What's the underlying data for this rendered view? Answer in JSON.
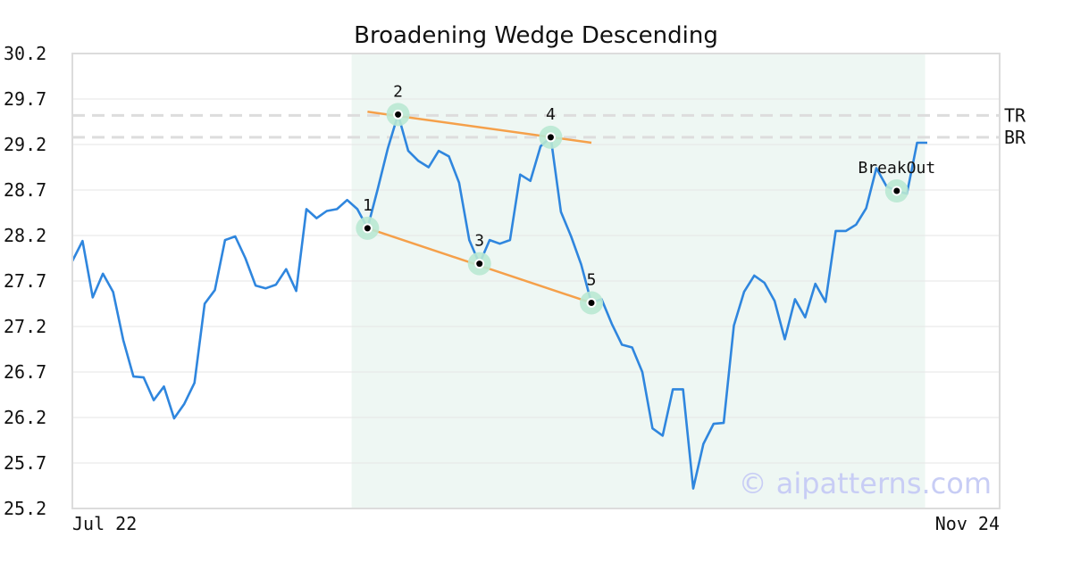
{
  "chart_data": {
    "type": "line",
    "title": "Broadening Wedge Descending",
    "xlabel": "",
    "ylabel": "",
    "ylim": [
      25.2,
      30.2
    ],
    "yticks": [
      "30.2",
      "29.7",
      "29.2",
      "28.7",
      "28.2",
      "27.7",
      "27.2",
      "26.7",
      "26.2",
      "25.7",
      "25.2"
    ],
    "xtick_labels": [
      {
        "index": 0,
        "label": "Jul 22"
      },
      {
        "index": 84,
        "label": "Nov 24"
      }
    ],
    "grid": true,
    "series": [
      {
        "values": [
          27.92,
          28.14,
          27.52,
          27.78,
          27.58,
          27.05,
          26.65,
          26.64,
          26.39,
          26.54,
          26.19,
          26.35,
          26.58,
          27.45,
          27.6,
          28.15,
          28.19,
          27.95,
          27.65,
          27.62,
          27.66,
          27.83,
          27.59,
          28.49,
          28.39,
          28.47,
          28.49,
          28.59,
          28.49,
          28.28,
          28.71,
          29.16,
          29.53,
          29.13,
          29.02,
          28.95,
          29.13,
          29.07,
          28.78,
          28.15,
          27.89,
          28.15,
          28.11,
          28.15,
          28.87,
          28.8,
          29.18,
          29.28,
          28.46,
          28.19,
          27.88,
          27.46,
          27.5,
          27.23,
          27.0,
          26.97,
          26.7,
          26.08,
          26.0,
          26.51,
          26.51,
          25.42,
          25.91,
          26.13,
          26.14,
          27.21,
          27.58,
          27.76,
          27.68,
          27.48,
          27.06,
          27.5,
          27.3,
          27.67,
          27.47,
          28.25,
          28.25,
          28.32,
          28.5,
          28.94,
          28.74,
          28.69,
          28.66,
          29.22,
          29.22
        ]
      }
    ],
    "pattern_region": {
      "start_index": 27,
      "end_index": 83
    },
    "pattern_points": [
      {
        "label": "1",
        "index": 29,
        "value": 28.28
      },
      {
        "label": "2",
        "index": 32,
        "value": 29.53
      },
      {
        "label": "3",
        "index": 40,
        "value": 27.89
      },
      {
        "label": "4",
        "index": 47,
        "value": 29.28
      },
      {
        "label": "5",
        "index": 51,
        "value": 27.46
      },
      {
        "label": "BreakOut",
        "index": 81,
        "value": 28.69
      }
    ],
    "trendlines": [
      {
        "x1": 29,
        "y1": 28.28,
        "x2": 51,
        "y2": 27.46
      },
      {
        "x1": 29,
        "y1": 29.56,
        "x2": 51,
        "y2": 29.22
      }
    ],
    "levels": [
      {
        "label": "TR",
        "value": 29.52
      },
      {
        "label": "BR",
        "value": 29.28
      }
    ],
    "watermark": "© aipatterns.com",
    "colors": {
      "line": "#2f86de",
      "trend": "#f5a04a",
      "highlight": "#eef7f3",
      "marker_halo": "#b9e8d3",
      "level": "#dddddd",
      "grid": "#e6e6e6",
      "frame": "#dcdcdc"
    }
  }
}
